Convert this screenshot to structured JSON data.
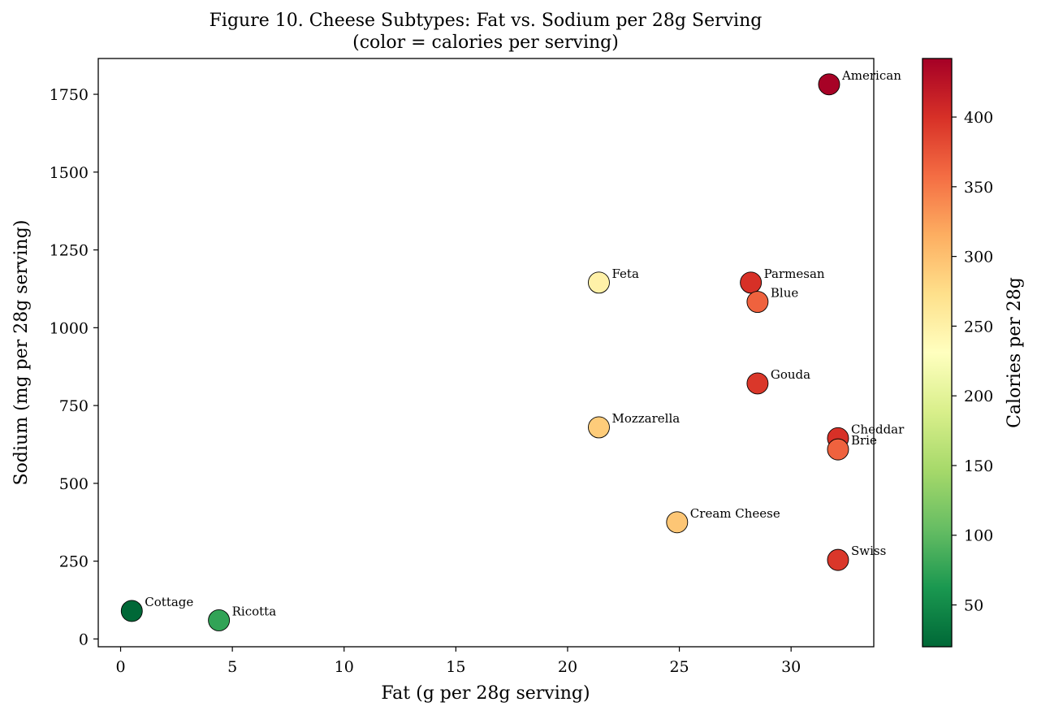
{
  "chart_data": {
    "type": "scatter",
    "title_lines": [
      "Figure 10. Cheese Subtypes: Fat vs. Sodium per 28g Serving",
      "(color = calories per serving)"
    ],
    "xlabel": "Fat (g per 28g serving)",
    "ylabel": "Sodium (mg per 28g serving)",
    "colorbar_label": "Calories per 28g",
    "xlim": [
      -1,
      33.7
    ],
    "ylim": [
      -25,
      1865
    ],
    "xticks": [
      0,
      5,
      10,
      15,
      20,
      25,
      30
    ],
    "yticks": [
      0,
      250,
      500,
      750,
      1000,
      1250,
      1500,
      1750
    ],
    "colorbar": {
      "colormap": "RdYlGn_r",
      "range": [
        20,
        442
      ],
      "ticks": [
        50,
        100,
        150,
        200,
        250,
        300,
        350,
        400
      ]
    },
    "grid": false,
    "points": [
      {
        "name": "American",
        "x": 31.7,
        "y": 1782,
        "calories": 440
      },
      {
        "name": "Feta",
        "x": 21.4,
        "y": 1145,
        "calories": 250
      },
      {
        "name": "Parmesan",
        "x": 28.2,
        "y": 1145,
        "calories": 400
      },
      {
        "name": "Blue",
        "x": 28.5,
        "y": 1083,
        "calories": 365
      },
      {
        "name": "Gouda",
        "x": 28.5,
        "y": 821,
        "calories": 395
      },
      {
        "name": "Mozzarella",
        "x": 21.4,
        "y": 680,
        "calories": 290
      },
      {
        "name": "Cheddar",
        "x": 32.1,
        "y": 645,
        "calories": 400
      },
      {
        "name": "Brie",
        "x": 32.1,
        "y": 609,
        "calories": 365
      },
      {
        "name": "Cream Cheese",
        "x": 24.9,
        "y": 375,
        "calories": 295
      },
      {
        "name": "Swiss",
        "x": 32.1,
        "y": 254,
        "calories": 395
      },
      {
        "name": "Cottage",
        "x": 0.5,
        "y": 90,
        "calories": 20
      },
      {
        "name": "Ricotta",
        "x": 4.4,
        "y": 60,
        "calories": 75
      }
    ]
  }
}
